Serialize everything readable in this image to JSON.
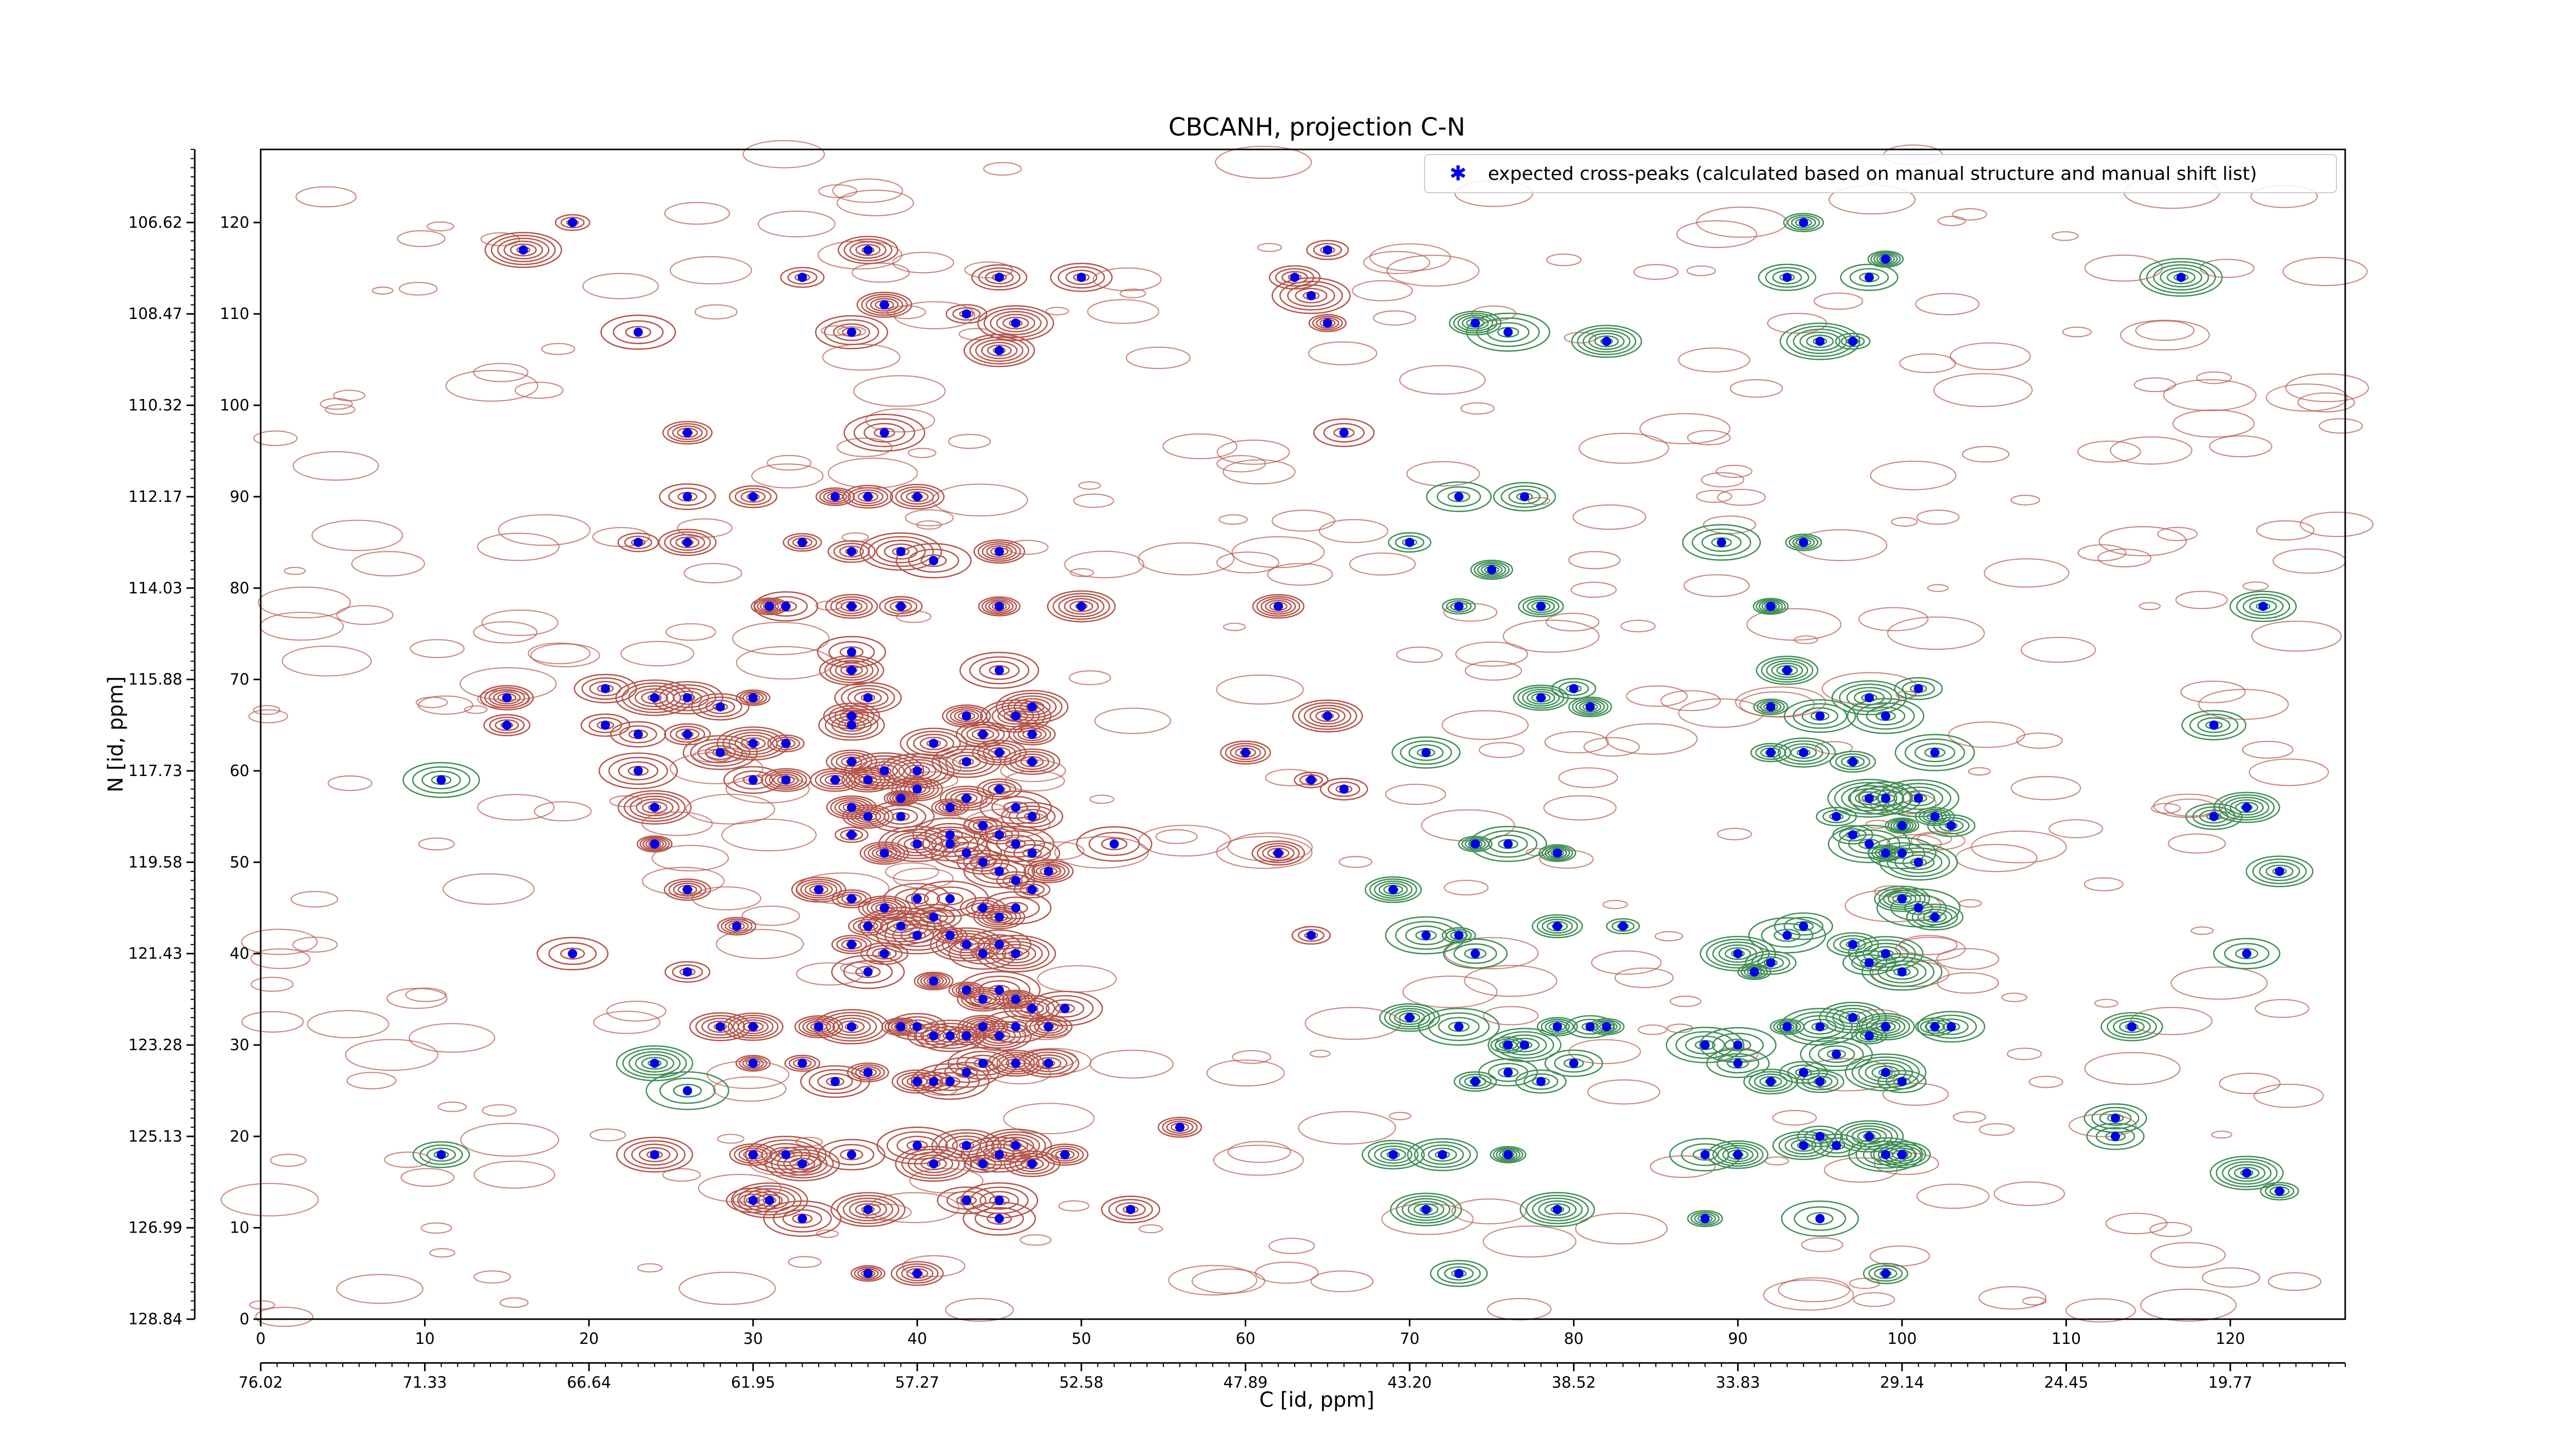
{
  "chart_data": {
    "type": "scatter",
    "title": "CBCANH, projection C-N",
    "xlabel": "C [id, ppm]",
    "ylabel": "N [id, ppm]",
    "xlim": [
      0,
      127
    ],
    "ylim": [
      0,
      128
    ],
    "x_index_ticks": [
      "0",
      "10",
      "20",
      "30",
      "40",
      "50",
      "60",
      "70",
      "80",
      "90",
      "100",
      "110",
      "120"
    ],
    "y_index_ticks": [
      "0",
      "10",
      "20",
      "30",
      "40",
      "50",
      "60",
      "70",
      "80",
      "90",
      "100",
      "110",
      "120"
    ],
    "x_ppm_ticks": [
      "76.02",
      "71.33",
      "66.64",
      "61.95",
      "57.27",
      "52.58",
      "47.89",
      "43.20",
      "38.52",
      "33.83",
      "29.14",
      "24.45",
      "19.77"
    ],
    "y_ppm_ticks": [
      "128.84",
      "126.99",
      "125.13",
      "123.28",
      "121.43",
      "119.58",
      "117.73",
      "115.88",
      "114.03",
      "112.17",
      "110.32",
      "108.47",
      "106.62"
    ],
    "legend": {
      "placement": "top-right",
      "label": "expected cross-peaks (calculated based on manual structure and manual shift list)"
    },
    "colors": {
      "positive_contour": "#b5554a",
      "negative_contour": "#3f8f55",
      "marker": "#0000ee"
    },
    "series": [
      {
        "name": "expected cross-peaks (calculated based on manual structure and manual shift list)",
        "points": [
          [
            19,
            120
          ],
          [
            16,
            117
          ],
          [
            37,
            117
          ],
          [
            45,
            114
          ],
          [
            50,
            114
          ],
          [
            65,
            117
          ],
          [
            63,
            114
          ],
          [
            33,
            114
          ],
          [
            93,
            114
          ],
          [
            98,
            114
          ],
          [
            94,
            120
          ],
          [
            99,
            116
          ],
          [
            117,
            114
          ],
          [
            23,
            108
          ],
          [
            36,
            108
          ],
          [
            97,
            107
          ],
          [
            95,
            107
          ],
          [
            64,
            112
          ],
          [
            38,
            111
          ],
          [
            43,
            110
          ],
          [
            46,
            109
          ],
          [
            65,
            109
          ],
          [
            74,
            109
          ],
          [
            76,
            108
          ],
          [
            82,
            107
          ],
          [
            45,
            106
          ],
          [
            26,
            97
          ],
          [
            38,
            97
          ],
          [
            66,
            97
          ],
          [
            26,
            90
          ],
          [
            30,
            90
          ],
          [
            35,
            90
          ],
          [
            37,
            90
          ],
          [
            40,
            90
          ],
          [
            73,
            90
          ],
          [
            77,
            90
          ],
          [
            33,
            85
          ],
          [
            36,
            84
          ],
          [
            39,
            84
          ],
          [
            23,
            85
          ],
          [
            26,
            85
          ],
          [
            45,
            84
          ],
          [
            41,
            83
          ],
          [
            70,
            85
          ],
          [
            75,
            82
          ],
          [
            89,
            85
          ],
          [
            94,
            85
          ],
          [
            31,
            78
          ],
          [
            32,
            78
          ],
          [
            36,
            78
          ],
          [
            39,
            78
          ],
          [
            45,
            78
          ],
          [
            50,
            78
          ],
          [
            62,
            78
          ],
          [
            73,
            78
          ],
          [
            78,
            78
          ],
          [
            92,
            78
          ],
          [
            122,
            78
          ],
          [
            15,
            68
          ],
          [
            21,
            69
          ],
          [
            24,
            68
          ],
          [
            26,
            68
          ],
          [
            28,
            67
          ],
          [
            30,
            68
          ],
          [
            36,
            73
          ],
          [
            36,
            71
          ],
          [
            37,
            68
          ],
          [
            36,
            66
          ],
          [
            45,
            71
          ],
          [
            47,
            67
          ],
          [
            43,
            66
          ],
          [
            46,
            66
          ],
          [
            78,
            68
          ],
          [
            80,
            69
          ],
          [
            81,
            67
          ],
          [
            93,
            71
          ],
          [
            92,
            67
          ],
          [
            98,
            68
          ],
          [
            99,
            66
          ],
          [
            101,
            69
          ],
          [
            65,
            66
          ],
          [
            95,
            66
          ],
          [
            15,
            65
          ],
          [
            21,
            65
          ],
          [
            23,
            64
          ],
          [
            26,
            64
          ],
          [
            28,
            62
          ],
          [
            30,
            63
          ],
          [
            30,
            59
          ],
          [
            32,
            59
          ],
          [
            32,
            63
          ],
          [
            36,
            65
          ],
          [
            36,
            61
          ],
          [
            38,
            60
          ],
          [
            40,
            60
          ],
          [
            43,
            61
          ],
          [
            45,
            62
          ],
          [
            47,
            61
          ],
          [
            47,
            64
          ],
          [
            41,
            63
          ],
          [
            44,
            64
          ],
          [
            11,
            59
          ],
          [
            23,
            60
          ],
          [
            24,
            56
          ],
          [
            60,
            62
          ],
          [
            64,
            59
          ],
          [
            66,
            58
          ],
          [
            71,
            62
          ],
          [
            92,
            62
          ],
          [
            94,
            62
          ],
          [
            97,
            61
          ],
          [
            102,
            62
          ],
          [
            119,
            65
          ],
          [
            35,
            59
          ],
          [
            37,
            59
          ],
          [
            39,
            57
          ],
          [
            40,
            58
          ],
          [
            42,
            56
          ],
          [
            43,
            57
          ],
          [
            45,
            58
          ],
          [
            46,
            56
          ],
          [
            47,
            55
          ],
          [
            36,
            56
          ],
          [
            37,
            55
          ],
          [
            39,
            55
          ],
          [
            42,
            53
          ],
          [
            44,
            54
          ],
          [
            45,
            53
          ],
          [
            46,
            52
          ],
          [
            47,
            51
          ],
          [
            48,
            49
          ],
          [
            36,
            53
          ],
          [
            38,
            51
          ],
          [
            40,
            52
          ],
          [
            42,
            52
          ],
          [
            43,
            51
          ],
          [
            44,
            50
          ],
          [
            45,
            49
          ],
          [
            46,
            48
          ],
          [
            47,
            47
          ],
          [
            52,
            52
          ],
          [
            34,
            47
          ],
          [
            36,
            46
          ],
          [
            38,
            45
          ],
          [
            40,
            46
          ],
          [
            42,
            46
          ],
          [
            44,
            45
          ],
          [
            45,
            44
          ],
          [
            46,
            45
          ],
          [
            24,
            52
          ],
          [
            26,
            47
          ],
          [
            62,
            51
          ],
          [
            69,
            47
          ],
          [
            74,
            52
          ],
          [
            76,
            52
          ],
          [
            79,
            51
          ],
          [
            96,
            55
          ],
          [
            97,
            53
          ],
          [
            98,
            52
          ],
          [
            99,
            51
          ],
          [
            100,
            51
          ],
          [
            101,
            50
          ],
          [
            100,
            54
          ],
          [
            98,
            57
          ],
          [
            99,
            57
          ],
          [
            101,
            57
          ],
          [
            102,
            55
          ],
          [
            103,
            54
          ],
          [
            100,
            46
          ],
          [
            101,
            45
          ],
          [
            102,
            44
          ],
          [
            119,
            55
          ],
          [
            121,
            56
          ],
          [
            123,
            49
          ],
          [
            29,
            43
          ],
          [
            37,
            43
          ],
          [
            39,
            43
          ],
          [
            40,
            42
          ],
          [
            41,
            44
          ],
          [
            42,
            42
          ],
          [
            43,
            41
          ],
          [
            44,
            40
          ],
          [
            45,
            41
          ],
          [
            46,
            40
          ],
          [
            36,
            41
          ],
          [
            38,
            40
          ],
          [
            19,
            40
          ],
          [
            26,
            38
          ],
          [
            37,
            38
          ],
          [
            41,
            37
          ],
          [
            43,
            36
          ],
          [
            44,
            35
          ],
          [
            45,
            36
          ],
          [
            46,
            35
          ],
          [
            47,
            34
          ],
          [
            49,
            34
          ],
          [
            64,
            42
          ],
          [
            71,
            42
          ],
          [
            73,
            42
          ],
          [
            74,
            40
          ],
          [
            79,
            43
          ],
          [
            83,
            43
          ],
          [
            90,
            40
          ],
          [
            91,
            38
          ],
          [
            92,
            39
          ],
          [
            93,
            42
          ],
          [
            94,
            43
          ],
          [
            97,
            41
          ],
          [
            98,
            39
          ],
          [
            99,
            40
          ],
          [
            100,
            38
          ],
          [
            121,
            40
          ],
          [
            28,
            32
          ],
          [
            30,
            32
          ],
          [
            34,
            32
          ],
          [
            36,
            32
          ],
          [
            39,
            32
          ],
          [
            40,
            32
          ],
          [
            41,
            31
          ],
          [
            42,
            31
          ],
          [
            43,
            31
          ],
          [
            44,
            32
          ],
          [
            45,
            31
          ],
          [
            46,
            32
          ],
          [
            48,
            32
          ],
          [
            70,
            33
          ],
          [
            73,
            32
          ],
          [
            76,
            30
          ],
          [
            77,
            30
          ],
          [
            79,
            32
          ],
          [
            81,
            32
          ],
          [
            82,
            32
          ],
          [
            88,
            30
          ],
          [
            90,
            30
          ],
          [
            93,
            32
          ],
          [
            95,
            32
          ],
          [
            97,
            33
          ],
          [
            98,
            31
          ],
          [
            99,
            32
          ],
          [
            102,
            32
          ],
          [
            103,
            32
          ],
          [
            114,
            32
          ],
          [
            24,
            28
          ],
          [
            26,
            25
          ],
          [
            30,
            28
          ],
          [
            33,
            28
          ],
          [
            35,
            26
          ],
          [
            37,
            27
          ],
          [
            40,
            26
          ],
          [
            41,
            26
          ],
          [
            42,
            26
          ],
          [
            43,
            27
          ],
          [
            44,
            28
          ],
          [
            46,
            28
          ],
          [
            48,
            28
          ],
          [
            74,
            26
          ],
          [
            76,
            27
          ],
          [
            78,
            26
          ],
          [
            80,
            28
          ],
          [
            90,
            28
          ],
          [
            92,
            26
          ],
          [
            94,
            27
          ],
          [
            95,
            26
          ],
          [
            96,
            29
          ],
          [
            99,
            27
          ],
          [
            100,
            26
          ],
          [
            56,
            21
          ],
          [
            40,
            19
          ],
          [
            43,
            19
          ],
          [
            46,
            19
          ],
          [
            49,
            18
          ],
          [
            41,
            17
          ],
          [
            44,
            17
          ],
          [
            45,
            18
          ],
          [
            47,
            17
          ],
          [
            30,
            18
          ],
          [
            32,
            18
          ],
          [
            33,
            17
          ],
          [
            36,
            18
          ],
          [
            24,
            18
          ],
          [
            11,
            18
          ],
          [
            69,
            18
          ],
          [
            72,
            18
          ],
          [
            76,
            18
          ],
          [
            88,
            18
          ],
          [
            90,
            18
          ],
          [
            94,
            19
          ],
          [
            95,
            20
          ],
          [
            96,
            19
          ],
          [
            98,
            20
          ],
          [
            99,
            18
          ],
          [
            100,
            18
          ],
          [
            113,
            22
          ],
          [
            113,
            20
          ],
          [
            121,
            16
          ],
          [
            123,
            14
          ],
          [
            30,
            13
          ],
          [
            31,
            13
          ],
          [
            33,
            11
          ],
          [
            37,
            12
          ],
          [
            43,
            13
          ],
          [
            45,
            13
          ],
          [
            45,
            11
          ],
          [
            53,
            12
          ],
          [
            71,
            12
          ],
          [
            79,
            12
          ],
          [
            88,
            11
          ],
          [
            95,
            11
          ],
          [
            73,
            5
          ],
          [
            37,
            5
          ],
          [
            40,
            5
          ],
          [
            99,
            5
          ]
        ]
      }
    ]
  }
}
